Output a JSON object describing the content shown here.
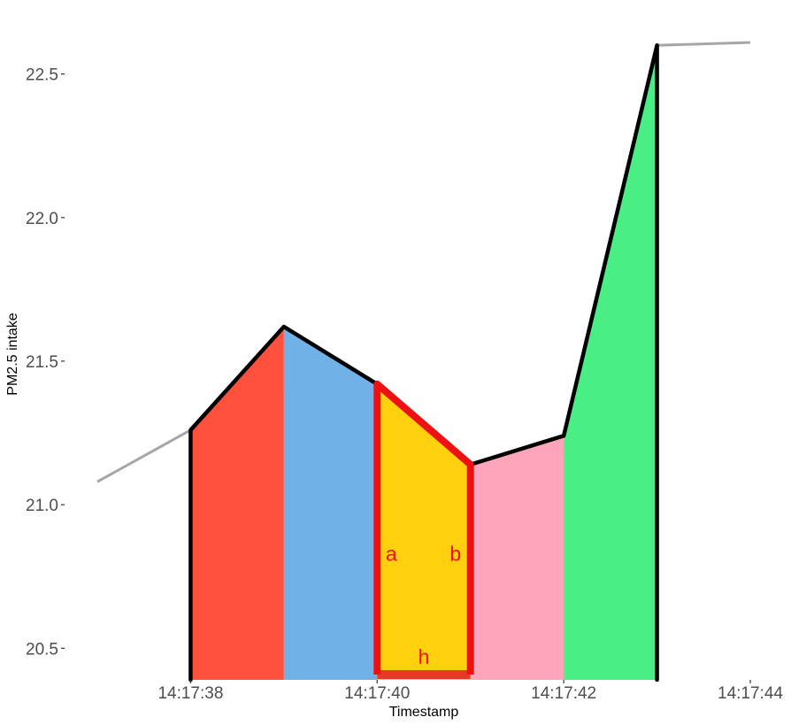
{
  "chart_data": {
    "type": "area",
    "xlabel": "Timestamp",
    "ylabel": "PM2.5 intake",
    "x_tick_labels": [
      "14:17:38",
      "14:17:40",
      "14:17:42",
      "14:17:44"
    ],
    "x_ticks_seconds": [
      38,
      40,
      42,
      44
    ],
    "y_ticks": [
      20.5,
      21.0,
      21.5,
      22.0,
      22.5
    ],
    "y_tick_labels": [
      "20.5",
      "21.0",
      "21.5",
      "22.0",
      "22.5"
    ],
    "xlim_seconds": [
      37,
      44
    ],
    "ylim": [
      20.39,
      22.69
    ],
    "grid": false,
    "line": {
      "color": "#a6a6a6",
      "x_seconds": [
        37,
        38,
        39,
        40,
        41,
        42,
        43,
        44
      ],
      "y": [
        21.08,
        21.26,
        21.62,
        21.42,
        21.14,
        21.24,
        22.6,
        22.61
      ]
    },
    "segments": [
      {
        "from": 38,
        "to": 39,
        "y0": 21.26,
        "y1": 21.62,
        "color": "#fe503c"
      },
      {
        "from": 39,
        "to": 40,
        "y0": 21.62,
        "y1": 21.42,
        "color": "#70b2e8"
      },
      {
        "from": 40,
        "to": 41,
        "y0": 21.42,
        "y1": 21.14,
        "color": "#ffd00d"
      },
      {
        "from": 41,
        "to": 42,
        "y0": 21.14,
        "y1": 21.24,
        "color": "#fea4bb"
      },
      {
        "from": 42,
        "to": 43,
        "y0": 21.24,
        "y1": 22.6,
        "color": "#49ee84"
      }
    ],
    "highlight": {
      "from": 40,
      "to": 41,
      "color": "#ee1111",
      "base_color": "#e8372c",
      "label_color": "#ee1111",
      "labels": {
        "left": "a",
        "right": "b",
        "bottom": "h"
      },
      "label_y": {
        "left": 20.83,
        "right": 20.83,
        "bottom": 20.47
      }
    }
  }
}
